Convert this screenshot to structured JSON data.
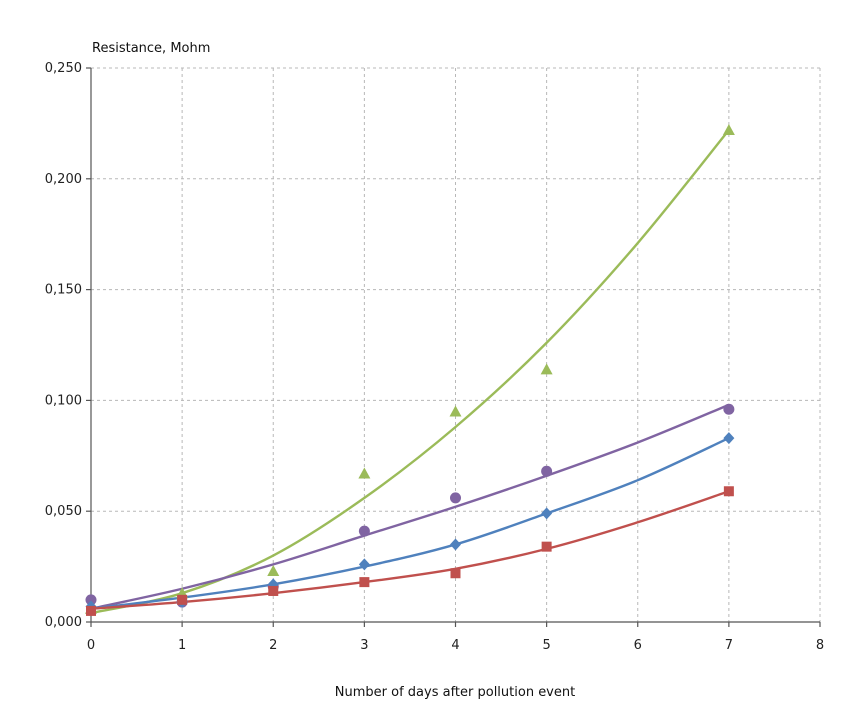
{
  "chart_data": {
    "type": "scatter",
    "ylabel": "Resistance, Mohm",
    "xlabel": "Number of days after pollution event",
    "xlim": [
      0,
      8
    ],
    "ylim": [
      0,
      0.25
    ],
    "x_ticks": [
      "0",
      "1",
      "2",
      "3",
      "4",
      "5",
      "6",
      "7",
      "8"
    ],
    "y_ticks": [
      "0,000",
      "0,050",
      "0,100",
      "0,150",
      "0,200",
      "0,250"
    ],
    "grid": true,
    "series": [
      {
        "marker": "triangle",
        "color": "#9bbb59",
        "points": [
          [
            0,
            0.006
          ],
          [
            1,
            0.013
          ],
          [
            2,
            0.023
          ],
          [
            3,
            0.067
          ],
          [
            4,
            0.095
          ],
          [
            5,
            0.114
          ],
          [
            7,
            0.222
          ]
        ],
        "trend": [
          [
            0,
            0.004
          ],
          [
            1,
            0.013
          ],
          [
            2,
            0.03
          ],
          [
            3,
            0.056
          ],
          [
            4,
            0.088
          ],
          [
            5,
            0.126
          ],
          [
            6,
            0.171
          ],
          [
            7,
            0.222
          ]
        ]
      },
      {
        "marker": "circle",
        "color": "#8064a2",
        "points": [
          [
            0,
            0.01
          ],
          [
            1,
            0.009
          ],
          [
            2,
            0.016
          ],
          [
            3,
            0.041
          ],
          [
            4,
            0.056
          ],
          [
            5,
            0.068
          ],
          [
            7,
            0.096
          ]
        ],
        "trend": [
          [
            0,
            0.006
          ],
          [
            1,
            0.015
          ],
          [
            2,
            0.026
          ],
          [
            3,
            0.039
          ],
          [
            4,
            0.052
          ],
          [
            5,
            0.066
          ],
          [
            6,
            0.081
          ],
          [
            7,
            0.098
          ]
        ]
      },
      {
        "marker": "diamond",
        "color": "#4f81bd",
        "points": [
          [
            0,
            0.007
          ],
          [
            1,
            0.009
          ],
          [
            2,
            0.017
          ],
          [
            3,
            0.026
          ],
          [
            4,
            0.035
          ],
          [
            5,
            0.049
          ],
          [
            7,
            0.083
          ]
        ],
        "trend": [
          [
            0,
            0.006
          ],
          [
            1,
            0.011
          ],
          [
            2,
            0.017
          ],
          [
            3,
            0.025
          ],
          [
            4,
            0.035
          ],
          [
            5,
            0.049
          ],
          [
            6,
            0.064
          ],
          [
            7,
            0.083
          ]
        ]
      },
      {
        "marker": "square",
        "color": "#c0504d",
        "points": [
          [
            0,
            0.005
          ],
          [
            1,
            0.01
          ],
          [
            2,
            0.014
          ],
          [
            3,
            0.018
          ],
          [
            4,
            0.022
          ],
          [
            5,
            0.034
          ],
          [
            7,
            0.059
          ]
        ],
        "trend": [
          [
            0,
            0.006
          ],
          [
            1,
            0.009
          ],
          [
            2,
            0.013
          ],
          [
            3,
            0.018
          ],
          [
            4,
            0.024
          ],
          [
            5,
            0.033
          ],
          [
            6,
            0.045
          ],
          [
            7,
            0.059
          ]
        ]
      }
    ]
  }
}
